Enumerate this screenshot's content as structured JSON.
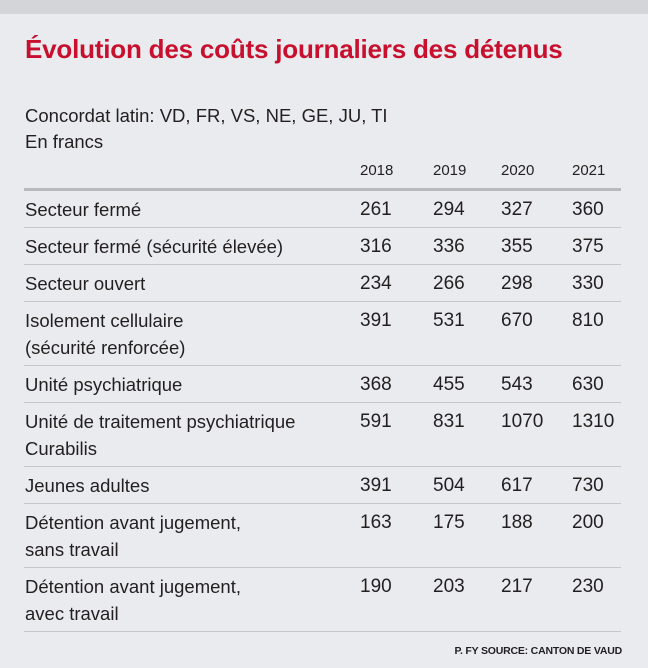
{
  "chart_data": {
    "type": "table",
    "title": "Évolution des coûts journaliers des détenus",
    "subtitle_lines": [
      "Concordat latin: VD, FR, VS, NE, GE, JU, TI",
      "En francs"
    ],
    "columns": [
      "2018",
      "2019",
      "2020",
      "2021"
    ],
    "rows": [
      {
        "label_lines": [
          "Secteur fermé"
        ],
        "values": [
          "261",
          "294",
          "327",
          "360"
        ]
      },
      {
        "label_lines": [
          "Secteur fermé (sécurité élevée)"
        ],
        "values": [
          "316",
          "336",
          "355",
          "375"
        ]
      },
      {
        "label_lines": [
          "Secteur ouvert"
        ],
        "values": [
          "234",
          "266",
          "298",
          "330"
        ]
      },
      {
        "label_lines": [
          "Isolement cellulaire",
          "(sécurité renforcée)"
        ],
        "values": [
          "391",
          "531",
          "670",
          "810"
        ]
      },
      {
        "label_lines": [
          "Unité psychiatrique"
        ],
        "values": [
          "368",
          "455",
          "543",
          "630"
        ]
      },
      {
        "label_lines": [
          "Unité de traitement psychiatrique",
          "Curabilis"
        ],
        "values": [
          "591",
          "831",
          "1070",
          "1310"
        ]
      },
      {
        "label_lines": [
          "Jeunes adultes"
        ],
        "values": [
          "391",
          "504",
          "617",
          "730"
        ]
      },
      {
        "label_lines": [
          "Détention avant jugement,",
          "sans travail"
        ],
        "values": [
          "163",
          "175",
          "188",
          "200"
        ]
      },
      {
        "label_lines": [
          "Détention avant jugement,",
          "avec travail"
        ],
        "values": [
          "190",
          "203",
          "217",
          "230"
        ]
      }
    ],
    "source": "P. FY SOURCE: CANTON DE VAUD"
  },
  "colors": {
    "title": "#c8102e",
    "background": "#e9ebee",
    "top_band": "#d3d5d8",
    "text": "#231f20",
    "rule": "#c4c6ca"
  }
}
